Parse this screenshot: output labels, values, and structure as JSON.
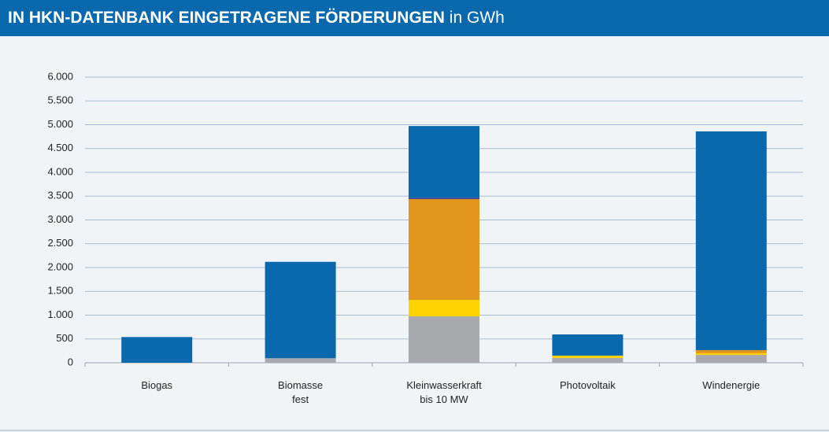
{
  "chart_data": {
    "type": "stacked_bar",
    "title": "IN HKN-DATENBANK EINGETRAGENE FÖRDERUNGEN",
    "unit": "in GWh",
    "categories": [
      "Biogas",
      "Biomasse\nfest",
      "Kleinwasserkraft\nbis 10 MW",
      "Photovoltaik",
      "Windenergie"
    ],
    "series": [
      {
        "color": "#a7a9ac",
        "values": [
          0,
          95,
          975,
          100,
          165
        ]
      },
      {
        "color": "#ffd200",
        "values": [
          0,
          0,
          347,
          50,
          35
        ]
      },
      {
        "color": "#e2961b",
        "values": [
          0,
          0,
          2116,
          0,
          65
        ]
      },
      {
        "color": "#3b3f91",
        "values": [
          0,
          0,
          30,
          0,
          0
        ]
      },
      {
        "color": "#0a68ad",
        "values": [
          540,
          2025,
          1505,
          445,
          4595
        ]
      }
    ],
    "ylim": [
      0,
      6000
    ],
    "yticks": [
      0,
      500,
      {
        "value": 1000,
        "label": "1.000"
      },
      {
        "value": 1500,
        "label": "1.500"
      },
      {
        "value": 2000,
        "label": "2.000"
      },
      {
        "value": 2500,
        "label": "2.500"
      },
      {
        "value": 3000,
        "label": "3.000"
      },
      {
        "value": 3500,
        "label": "3.500"
      },
      {
        "value": 4000,
        "label": "4.000"
      },
      {
        "value": 4500,
        "label": "4.500"
      },
      {
        "value": 5000,
        "label": "5.000"
      },
      {
        "value": 5500,
        "label": "5.500"
      },
      {
        "value": 6000,
        "label": "6.000"
      }
    ],
    "grid": true
  }
}
